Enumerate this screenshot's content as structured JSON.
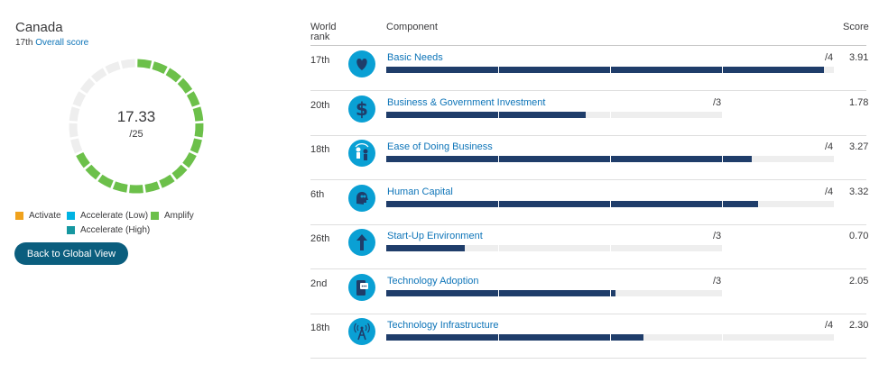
{
  "country": {
    "name": "Canada",
    "rank": "17th",
    "rank_link": "Overall score"
  },
  "overall": {
    "score": "17.33",
    "max": "/25",
    "ring_fraction": 0.6932
  },
  "colors": {
    "activate": "#f0a21d",
    "accelerate_low": "#00b3e3",
    "accelerate_high": "#1697a0",
    "amplify": "#6cc04a",
    "track": "#eeeeee",
    "bar": "#1f3d6a",
    "icon_bg": "#0aa0d4",
    "link": "#0d74b8",
    "button": "#0b5e7e"
  },
  "legend": [
    {
      "label": "Activate",
      "color": "#f0a21d"
    },
    {
      "label": "Accelerate (Low)",
      "color": "#00b3e3"
    },
    {
      "label": "Amplify",
      "color": "#6cc04a"
    },
    {
      "label": "Accelerate (High)",
      "color": "#1697a0"
    }
  ],
  "back_button": {
    "label": "Back to Global View"
  },
  "table": {
    "headers": {
      "rank_line1": "World",
      "rank_line2": "rank",
      "component": "Component",
      "score": "Score"
    },
    "rows": [
      {
        "rank": "17th",
        "icon": "heart-icon",
        "name": "Basic Needs",
        "max_label": "/4",
        "max": 4,
        "score": "3.91",
        "value": 3.91
      },
      {
        "rank": "20th",
        "icon": "dollar-icon",
        "name": "Business & Government Investment",
        "max_label": "/3",
        "max": 3,
        "score": "1.78",
        "value": 1.78
      },
      {
        "rank": "18th",
        "icon": "business-people-icon",
        "name": "Ease of Doing Business",
        "max_label": "/4",
        "max": 4,
        "score": "3.27",
        "value": 3.27
      },
      {
        "rank": "6th",
        "icon": "human-head-icon",
        "name": "Human Capital",
        "max_label": "/4",
        "max": 4,
        "score": "3.32",
        "value": 3.32
      },
      {
        "rank": "26th",
        "icon": "up-arrow-icon",
        "name": "Start-Up Environment",
        "max_label": "/3",
        "max": 3,
        "score": "0.70",
        "value": 0.7
      },
      {
        "rank": "2nd",
        "icon": "phone-chat-icon",
        "name": "Technology Adoption",
        "max_label": "/3",
        "max": 3,
        "score": "2.05",
        "value": 2.05
      },
      {
        "rank": "18th",
        "icon": "radio-tower-icon",
        "name": "Technology Infrastructure",
        "max_label": "/4",
        "max": 4,
        "score": "2.30",
        "value": 2.3
      }
    ]
  }
}
